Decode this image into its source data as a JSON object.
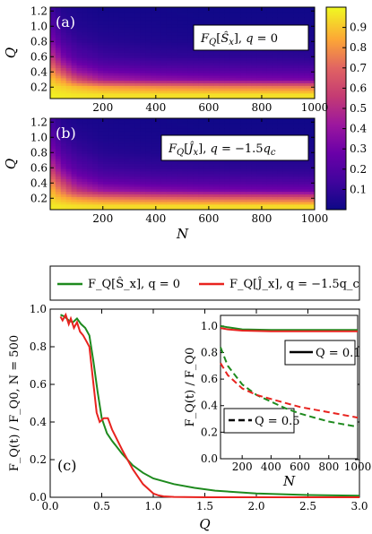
{
  "chart_data": [
    {
      "id": "a",
      "type": "heatmap",
      "panel_label": "(a)",
      "annotation": "F_Q[Ŝ_x], q = 0",
      "xlabel": "",
      "ylabel": "Q",
      "xlim": [
        1,
        1000
      ],
      "ylim": [
        0.05,
        1.25
      ],
      "xticks": [
        "200",
        "400",
        "600",
        "800",
        "1000"
      ],
      "yticks": [
        "0.2",
        "0.4",
        "0.6",
        "0.8",
        "1.0",
        "1.2"
      ],
      "x": [
        1,
        50,
        100,
        200,
        400,
        600,
        800,
        1000
      ],
      "y": [
        0.1,
        0.2,
        0.3,
        0.4,
        0.5,
        0.6,
        0.8,
        1.0,
        1.2
      ],
      "z": [
        [
          0.98,
          0.97,
          0.96,
          0.95,
          0.95,
          0.95,
          0.95,
          0.95
        ],
        [
          0.95,
          0.92,
          0.88,
          0.82,
          0.78,
          0.76,
          0.75,
          0.74
        ],
        [
          0.9,
          0.8,
          0.62,
          0.45,
          0.38,
          0.35,
          0.33,
          0.32
        ],
        [
          0.82,
          0.62,
          0.42,
          0.3,
          0.25,
          0.23,
          0.22,
          0.21
        ],
        [
          0.7,
          0.45,
          0.3,
          0.2,
          0.16,
          0.15,
          0.14,
          0.13
        ],
        [
          0.55,
          0.32,
          0.2,
          0.13,
          0.1,
          0.09,
          0.09,
          0.08
        ],
        [
          0.35,
          0.18,
          0.11,
          0.07,
          0.05,
          0.04,
          0.04,
          0.04
        ],
        [
          0.22,
          0.1,
          0.06,
          0.04,
          0.03,
          0.02,
          0.02,
          0.02
        ],
        [
          0.14,
          0.06,
          0.04,
          0.02,
          0.02,
          0.01,
          0.01,
          0.01
        ]
      ]
    },
    {
      "id": "b",
      "type": "heatmap",
      "panel_label": "(b)",
      "annotation": "F_Q[Ĵ_x], q = −1.5q_c",
      "xlabel": "N",
      "ylabel": "Q",
      "xlim": [
        1,
        1000
      ],
      "ylim": [
        0.05,
        1.25
      ],
      "xticks": [
        "200",
        "400",
        "600",
        "800",
        "1000"
      ],
      "yticks": [
        "0.2",
        "0.4",
        "0.6",
        "0.8",
        "1.0",
        "1.2"
      ],
      "x": [
        1,
        50,
        100,
        200,
        400,
        600,
        800,
        1000
      ],
      "y": [
        0.1,
        0.2,
        0.3,
        0.4,
        0.5,
        0.6,
        0.8,
        1.0,
        1.2
      ],
      "z": [
        [
          0.97,
          0.96,
          0.95,
          0.94,
          0.94,
          0.94,
          0.94,
          0.94
        ],
        [
          0.93,
          0.86,
          0.8,
          0.74,
          0.7,
          0.68,
          0.67,
          0.66
        ],
        [
          0.88,
          0.72,
          0.55,
          0.42,
          0.36,
          0.33,
          0.31,
          0.3
        ],
        [
          0.8,
          0.58,
          0.4,
          0.28,
          0.23,
          0.21,
          0.2,
          0.19
        ],
        [
          0.68,
          0.44,
          0.29,
          0.19,
          0.15,
          0.14,
          0.13,
          0.12
        ],
        [
          0.55,
          0.32,
          0.21,
          0.13,
          0.1,
          0.09,
          0.08,
          0.08
        ],
        [
          0.36,
          0.19,
          0.12,
          0.07,
          0.05,
          0.04,
          0.04,
          0.04
        ],
        [
          0.24,
          0.11,
          0.07,
          0.04,
          0.03,
          0.02,
          0.02,
          0.02
        ],
        [
          0.16,
          0.07,
          0.04,
          0.03,
          0.02,
          0.01,
          0.01,
          0.01
        ]
      ]
    },
    {
      "id": "colorbar",
      "type": "colorbar",
      "range": [
        0,
        1
      ],
      "ticks": [
        "0.1",
        "0.2",
        "0.3",
        "0.4",
        "0.5",
        "0.6",
        "0.7",
        "0.8",
        "0.9"
      ],
      "tick_values": [
        0.1,
        0.2,
        0.3,
        0.4,
        0.5,
        0.6,
        0.7,
        0.8,
        0.9
      ]
    },
    {
      "id": "c",
      "type": "line",
      "panel_label": "(c)",
      "xlabel": "Q",
      "ylabel": "F_Q(t) / F_Q0, N = 500",
      "xlim": [
        0,
        3
      ],
      "ylim": [
        0,
        1
      ],
      "xticks": [
        "0.0",
        "0.5",
        "1.0",
        "1.5",
        "2.0",
        "2.5",
        "3.0"
      ],
      "yticks": [
        "0.0",
        "0.2",
        "0.4",
        "0.6",
        "0.8",
        "1.0"
      ],
      "legend": [
        {
          "text": "F_Q[Ŝ_x], q = 0",
          "color": "#1e8a1e"
        },
        {
          "text": "F_Q[Ĵ_x], q = −1.5q_c",
          "color": "#e8231f"
        }
      ],
      "series": [
        {
          "color": "#1e8a1e",
          "x": [
            0.1,
            0.14,
            0.18,
            0.22,
            0.26,
            0.3,
            0.34,
            0.38,
            0.42,
            0.46,
            0.5,
            0.55,
            0.6,
            0.7,
            0.8,
            0.9,
            1.0,
            1.2,
            1.4,
            1.6,
            2.0,
            2.5,
            3.0
          ],
          "y": [
            0.97,
            0.96,
            0.94,
            0.93,
            0.95,
            0.92,
            0.9,
            0.86,
            0.72,
            0.56,
            0.42,
            0.34,
            0.3,
            0.23,
            0.17,
            0.13,
            0.1,
            0.07,
            0.05,
            0.035,
            0.02,
            0.012,
            0.008
          ]
        },
        {
          "color": "#e8231f",
          "x": [
            0.1,
            0.12,
            0.15,
            0.18,
            0.2,
            0.23,
            0.26,
            0.29,
            0.32,
            0.35,
            0.38,
            0.42,
            0.45,
            0.48,
            0.52,
            0.56,
            0.6,
            0.7,
            0.8,
            0.9,
            1.0,
            1.05,
            1.1,
            1.2,
            1.5,
            2.0,
            3.0
          ],
          "y": [
            0.96,
            0.94,
            0.97,
            0.92,
            0.95,
            0.9,
            0.93,
            0.88,
            0.86,
            0.83,
            0.8,
            0.6,
            0.45,
            0.4,
            0.42,
            0.42,
            0.36,
            0.25,
            0.15,
            0.07,
            0.02,
            0.01,
            0.005,
            0.002,
            0.0,
            0.0,
            0.0
          ]
        }
      ]
    },
    {
      "id": "c-inset",
      "type": "line",
      "xlabel": "N",
      "ylabel": "F_Q(t) / F_Q0",
      "xlim": [
        50,
        1000
      ],
      "ylim": [
        0,
        1.08
      ],
      "xticks": [
        "200",
        "400",
        "600",
        "800",
        "1000"
      ],
      "yticks": [
        "0.0",
        "0.2",
        "0.4",
        "0.6",
        "0.8",
        "1.0"
      ],
      "legend": [
        {
          "text": "Q = 0.1",
          "style": "solid"
        },
        {
          "text": "Q = 0.5",
          "style": "dashed"
        }
      ],
      "series": [
        {
          "color": "#1e8a1e",
          "style": "solid",
          "x": [
            50,
            100,
            200,
            400,
            600,
            800,
            1000
          ],
          "y": [
            1.0,
            0.99,
            0.975,
            0.97,
            0.97,
            0.97,
            0.97
          ]
        },
        {
          "color": "#e8231f",
          "style": "solid",
          "x": [
            50,
            100,
            200,
            400,
            600,
            800,
            1000
          ],
          "y": [
            0.985,
            0.975,
            0.965,
            0.96,
            0.96,
            0.96,
            0.96
          ]
        },
        {
          "color": "#1e8a1e",
          "style": "dashed",
          "x": [
            50,
            100,
            200,
            300,
            400,
            500,
            600,
            700,
            800,
            900,
            1000
          ],
          "y": [
            0.84,
            0.7,
            0.56,
            0.48,
            0.43,
            0.38,
            0.34,
            0.31,
            0.28,
            0.26,
            0.24
          ]
        },
        {
          "color": "#e8231f",
          "style": "dashed",
          "x": [
            50,
            100,
            200,
            300,
            400,
            500,
            600,
            700,
            800,
            900,
            1000
          ],
          "y": [
            0.72,
            0.63,
            0.53,
            0.48,
            0.45,
            0.42,
            0.39,
            0.37,
            0.35,
            0.33,
            0.31
          ]
        }
      ]
    }
  ]
}
